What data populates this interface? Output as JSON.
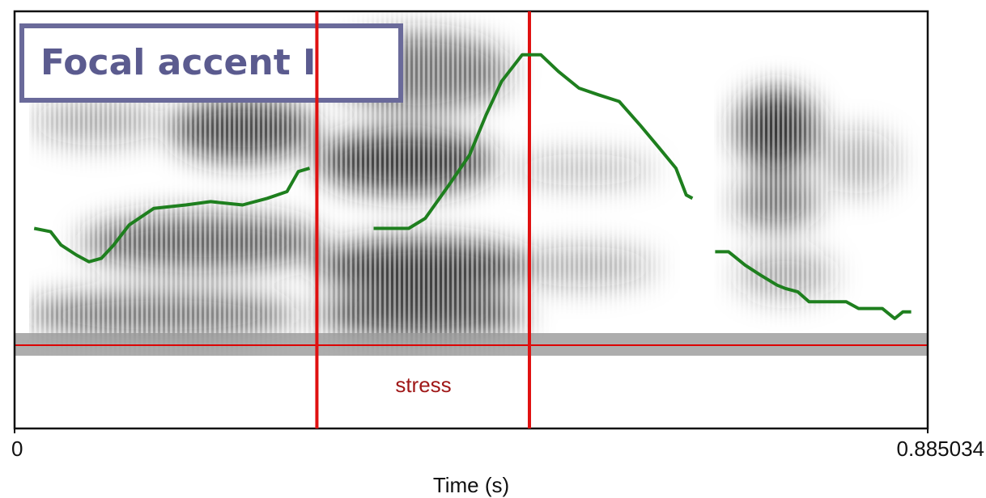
{
  "chart_data": {
    "type": "line",
    "title": "Focal accent I",
    "xlabel": "Time (s)",
    "xlim": [
      0,
      0.885034
    ],
    "xticks": [
      0,
      0.885034
    ],
    "ylim": [
      0,
      1
    ],
    "interval_label": "stress",
    "boundaries": [
      0.293,
      0.499
    ],
    "series": [
      {
        "color": "#1e7f1e",
        "x": [
          0.019,
          0.035,
          0.045,
          0.06,
          0.072,
          0.084,
          0.096,
          0.111,
          0.135,
          0.166,
          0.19,
          0.221,
          0.245,
          0.264,
          0.275,
          0.286,
          0.32,
          0.348,
          0.362,
          0.382,
          0.398,
          0.421,
          0.441,
          0.457,
          0.472,
          0.492,
          0.51,
          0.527,
          0.547,
          0.566,
          0.586,
          0.606,
          0.625,
          0.641,
          0.651,
          0.657,
          0.668,
          0.679,
          0.692,
          0.708,
          0.723,
          0.739,
          0.747,
          0.759,
          0.77,
          0.786,
          0.806,
          0.818,
          0.841,
          0.853,
          0.861,
          0.869
        ],
        "values": [
          0.35,
          0.34,
          0.3,
          0.27,
          0.25,
          0.26,
          0.3,
          0.36,
          0.41,
          0.42,
          0.43,
          0.42,
          0.44,
          0.46,
          0.52,
          0.53,
          null,
          0.35,
          0.35,
          0.35,
          0.38,
          0.48,
          0.57,
          0.69,
          0.79,
          0.87,
          0.87,
          0.82,
          0.77,
          0.75,
          0.73,
          0.66,
          0.59,
          0.53,
          0.45,
          0.44,
          null,
          0.28,
          0.28,
          0.24,
          0.21,
          0.18,
          0.17,
          0.16,
          0.13,
          0.13,
          0.13,
          0.11,
          0.11,
          0.08,
          0.1,
          0.1
        ]
      }
    ]
  }
}
